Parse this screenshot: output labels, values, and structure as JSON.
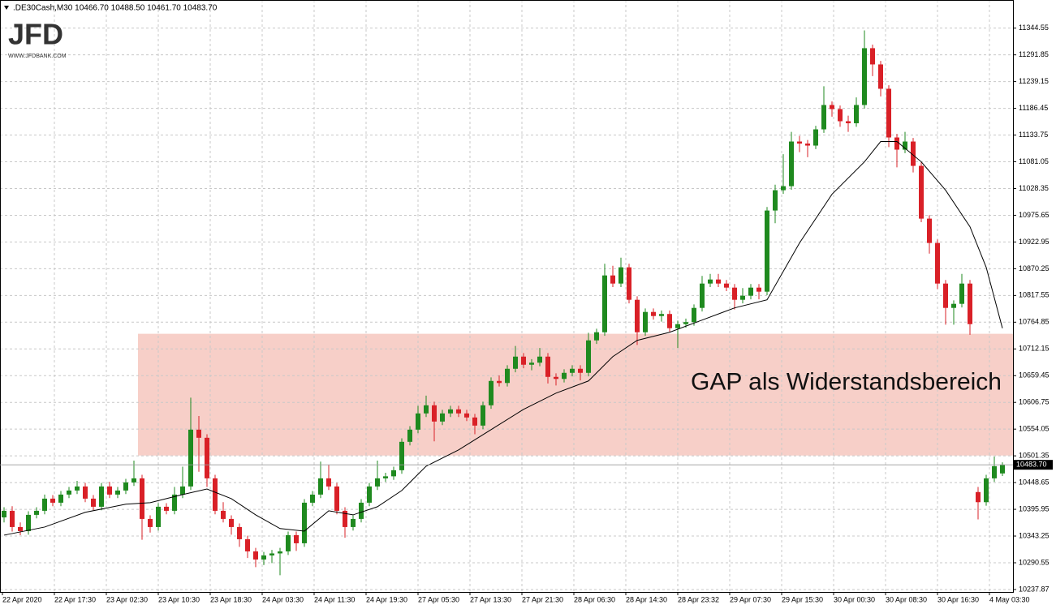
{
  "chart_data": {
    "type": "candlestick",
    "header": ".DE30Cash,M30  10466.70 10488.50 10461.70 10483.70",
    "logo": "JFD",
    "logo_sub": "WWW.JFDBANK.COM",
    "annotation": "GAP als Widerstandsbereich",
    "ylim": [
      10233,
      11400
    ],
    "yticks": [
      11344.55,
      11291.85,
      11239.15,
      11186.45,
      11133.75,
      11081.05,
      11028.35,
      10975.65,
      10922.95,
      10870.25,
      10817.55,
      10764.85,
      10712.15,
      10659.45,
      10606.75,
      10554.05,
      10501.35,
      10448.65,
      10395.95,
      10343.25,
      10290.55,
      10237.87
    ],
    "xlabels": [
      "22 Apr 2020",
      "22 Apr 17:30",
      "23 Apr 02:30",
      "23 Apr 10:30",
      "23 Apr 18:30",
      "24 Apr 03:30",
      "24 Apr 11:30",
      "24 Apr 19:30",
      "27 Apr 05:30",
      "27 Apr 13:30",
      "27 Apr 21:30",
      "28 Apr 06:30",
      "28 Apr 14:30",
      "28 Apr 23:32",
      "29 Apr 07:30",
      "29 Apr 15:30",
      "30 Apr 00:30",
      "30 Apr 08:30",
      "30 Apr 16:30",
      "4 May 03:30"
    ],
    "last_price": {
      "value": 10483.7,
      "label": "10483.70"
    },
    "zone": {
      "low": 10502,
      "high": 10742,
      "x_start": 17,
      "color": "#f7cfc8"
    },
    "up_color": "#1f8a1f",
    "down_color": "#d92027",
    "grid": true,
    "candles": [
      [
        10380,
        10400,
        10370,
        10393
      ],
      [
        10393,
        10402,
        10352,
        10361
      ],
      [
        10361,
        10370,
        10345,
        10353
      ],
      [
        10353,
        10392,
        10346,
        10385
      ],
      [
        10385,
        10400,
        10378,
        10393
      ],
      [
        10393,
        10425,
        10386,
        10417
      ],
      [
        10417,
        10424,
        10402,
        10409
      ],
      [
        10409,
        10432,
        10402,
        10425
      ],
      [
        10425,
        10440,
        10418,
        10433
      ],
      [
        10433,
        10452,
        10426,
        10441
      ],
      [
        10441,
        10448,
        10410,
        10417
      ],
      [
        10417,
        10424,
        10394,
        10401
      ],
      [
        10401,
        10448,
        10394,
        10441
      ],
      [
        10441,
        10450,
        10418,
        10425
      ],
      [
        10425,
        10440,
        10418,
        10433
      ],
      [
        10433,
        10456,
        10426,
        10449
      ],
      [
        10449,
        10492,
        10442,
        10457
      ],
      [
        10457,
        10464,
        10336,
        10377
      ],
      [
        10377,
        10384,
        10350,
        10361
      ],
      [
        10361,
        10408,
        10354,
        10401
      ],
      [
        10401,
        10408,
        10386,
        10393
      ],
      [
        10393,
        10440,
        10386,
        10425
      ],
      [
        10425,
        10480,
        10418,
        10441
      ],
      [
        10441,
        10616,
        10434,
        10553
      ],
      [
        10553,
        10580,
        10470,
        10537
      ],
      [
        10537,
        10544,
        10440,
        10457
      ],
      [
        10457,
        10464,
        10386,
        10393
      ],
      [
        10393,
        10410,
        10370,
        10377
      ],
      [
        10377,
        10384,
        10346,
        10361
      ],
      [
        10361,
        10368,
        10322,
        10337
      ],
      [
        10337,
        10344,
        10300,
        10313
      ],
      [
        10313,
        10320,
        10282,
        10297
      ],
      [
        10297,
        10312,
        10286,
        10305
      ],
      [
        10305,
        10316,
        10290,
        10309
      ],
      [
        10309,
        10320,
        10266,
        10313
      ],
      [
        10313,
        10352,
        10306,
        10345
      ],
      [
        10345,
        10352,
        10314,
        10329
      ],
      [
        10329,
        10416,
        10322,
        10409
      ],
      [
        10409,
        10432,
        10402,
        10425
      ],
      [
        10425,
        10490,
        10418,
        10457
      ],
      [
        10457,
        10484,
        10434,
        10441
      ],
      [
        10441,
        10448,
        10386,
        10393
      ],
      [
        10393,
        10400,
        10340,
        10361
      ],
      [
        10361,
        10384,
        10354,
        10377
      ],
      [
        10377,
        10416,
        10370,
        10409
      ],
      [
        10409,
        10448,
        10402,
        10441
      ],
      [
        10441,
        10492,
        10434,
        10457
      ],
      [
        10457,
        10468,
        10450,
        10461
      ],
      [
        10461,
        10480,
        10454,
        10473
      ],
      [
        10473,
        10536,
        10466,
        10529
      ],
      [
        10529,
        10560,
        10522,
        10553
      ],
      [
        10553,
        10600,
        10546,
        10585
      ],
      [
        10585,
        10620,
        10578,
        10601
      ],
      [
        10601,
        10608,
        10530,
        10569
      ],
      [
        10569,
        10592,
        10562,
        10585
      ],
      [
        10585,
        10600,
        10578,
        10593
      ],
      [
        10593,
        10600,
        10578,
        10585
      ],
      [
        10585,
        10592,
        10570,
        10577
      ],
      [
        10577,
        10584,
        10544,
        10561
      ],
      [
        10561,
        10608,
        10554,
        10601
      ],
      [
        10601,
        10656,
        10594,
        10649
      ],
      [
        10649,
        10660,
        10638,
        10645
      ],
      [
        10645,
        10680,
        10638,
        10673
      ],
      [
        10673,
        10718,
        10666,
        10697
      ],
      [
        10697,
        10704,
        10674,
        10681
      ],
      [
        10681,
        10692,
        10670,
        10685
      ],
      [
        10685,
        10714,
        10678,
        10697
      ],
      [
        10697,
        10704,
        10644,
        10657
      ],
      [
        10657,
        10664,
        10640,
        10653
      ],
      [
        10653,
        10672,
        10646,
        10665
      ],
      [
        10665,
        10680,
        10658,
        10673
      ],
      [
        10673,
        10680,
        10650,
        10665
      ],
      [
        10665,
        10744,
        10658,
        10729
      ],
      [
        10729,
        10752,
        10722,
        10745
      ],
      [
        10745,
        10880,
        10738,
        10857
      ],
      [
        10857,
        10876,
        10834,
        10841
      ],
      [
        10841,
        10892,
        10834,
        10873
      ],
      [
        10873,
        10880,
        10802,
        10809
      ],
      [
        10809,
        10816,
        10720,
        10745
      ],
      [
        10745,
        10792,
        10738,
        10785
      ],
      [
        10785,
        10792,
        10770,
        10777
      ],
      [
        10777,
        10788,
        10766,
        10781
      ],
      [
        10781,
        10788,
        10746,
        10753
      ],
      [
        10753,
        10768,
        10714,
        10761
      ],
      [
        10761,
        10772,
        10754,
        10765
      ],
      [
        10765,
        10800,
        10758,
        10793
      ],
      [
        10793,
        10856,
        10786,
        10841
      ],
      [
        10841,
        10860,
        10834,
        10849
      ],
      [
        10849,
        10860,
        10834,
        10841
      ],
      [
        10841,
        10848,
        10826,
        10833
      ],
      [
        10833,
        10840,
        10790,
        10809
      ],
      [
        10809,
        10832,
        10802,
        10817
      ],
      [
        10817,
        10840,
        10810,
        10833
      ],
      [
        10833,
        10840,
        10810,
        10825
      ],
      [
        10825,
        10992,
        10818,
        10985
      ],
      [
        10985,
        11036,
        10960,
        11025
      ],
      [
        11025,
        11096,
        11018,
        11033
      ],
      [
        11033,
        11140,
        11026,
        11121
      ],
      [
        11121,
        11132,
        11100,
        11117
      ],
      [
        11117,
        11124,
        11090,
        11113
      ],
      [
        11113,
        11152,
        11106,
        11145
      ],
      [
        11145,
        11230,
        11138,
        11193
      ],
      [
        11193,
        11200,
        11170,
        11185
      ],
      [
        11185,
        11192,
        11150,
        11161
      ],
      [
        11161,
        11172,
        11140,
        11157
      ],
      [
        11157,
        11208,
        11150,
        11193
      ],
      [
        11193,
        11340,
        11186,
        11305
      ],
      [
        11305,
        11312,
        11250,
        11273
      ],
      [
        11273,
        11280,
        11210,
        11225
      ],
      [
        11225,
        11232,
        11110,
        11129
      ],
      [
        11129,
        11136,
        11070,
        11105
      ],
      [
        11105,
        11140,
        11098,
        11121
      ],
      [
        11121,
        11128,
        11060,
        11073
      ],
      [
        11073,
        11080,
        10962,
        10969
      ],
      [
        10969,
        10976,
        10900,
        10921
      ],
      [
        10921,
        10928,
        10830,
        10841
      ],
      [
        10841,
        10848,
        10760,
        10793
      ],
      [
        10793,
        10808,
        10760,
        10801
      ],
      [
        10801,
        10860,
        10794,
        10841
      ],
      [
        10841,
        10848,
        10740,
        10761
      ],
      [
        10430,
        10440,
        10376,
        10410
      ],
      [
        10410,
        10464,
        10403,
        10457
      ],
      [
        10457,
        10500,
        10450,
        10481
      ],
      [
        10466.7,
        10488.5,
        10461.7,
        10483.7
      ]
    ],
    "ma": {
      "color": "#000000",
      "x": [
        0,
        5,
        10,
        15,
        18,
        22,
        25,
        28,
        31,
        34,
        37,
        40,
        43,
        46,
        49,
        52,
        56,
        60,
        64,
        68,
        72,
        75,
        78,
        82,
        86,
        90,
        94,
        98,
        102,
        106,
        108,
        110,
        113,
        116,
        119,
        121,
        123
      ],
      "values": [
        10345,
        10361,
        10390,
        10406,
        10409,
        10425,
        10436,
        10417,
        10385,
        10358,
        10353,
        10393,
        10385,
        10401,
        10433,
        10481,
        10513,
        10553,
        10593,
        10625,
        10649,
        10697,
        10729,
        10745,
        10769,
        10793,
        10809,
        10921,
        11017,
        11081,
        11121,
        11121,
        11081,
        11025,
        10953,
        10873,
        10753
      ]
    }
  }
}
